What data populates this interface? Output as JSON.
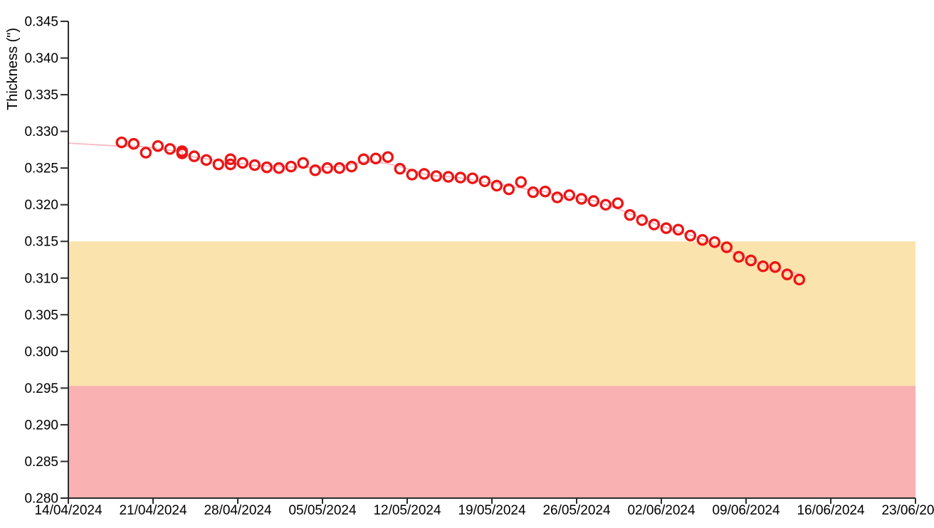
{
  "page": {
    "background": "#ffffff"
  },
  "chart_data": {
    "type": "scatter",
    "title": "",
    "xlabel": "",
    "ylabel": "Thickness (\")",
    "grid": false,
    "legend": "none",
    "ylim": [
      0.28,
      0.345
    ],
    "y_tick_step": 0.005,
    "y_ticks": [
      "0.345",
      "0.340",
      "0.335",
      "0.330",
      "0.325",
      "0.320",
      "0.315",
      "0.310",
      "0.305",
      "0.300",
      "0.295",
      "0.290",
      "0.285",
      "0.280"
    ],
    "x_range": [
      "14/04/2024",
      "23/06/2024"
    ],
    "x_ticks": [
      "14/04/2024",
      "21/04/2024",
      "28/04/2024",
      "05/05/2024",
      "12/05/2024",
      "19/05/2024",
      "26/05/2024",
      "02/06/2024",
      "09/06/2024",
      "16/06/2024",
      "23/06/2024"
    ],
    "colors": {
      "marker": "#ed1515",
      "trend_line": "#f7b9c0",
      "warning_band": "#fbe3ad",
      "alarm_band": "#f9b1b1",
      "axis": "#2b2b2b"
    },
    "bands": [
      {
        "name": "warning-band",
        "from": 0.2953,
        "to": 0.315,
        "color": "#fbe3ad"
      },
      {
        "name": "alarm-band",
        "from": 0.28,
        "to": 0.2953,
        "color": "#f9b1b1"
      }
    ],
    "series": [
      {
        "name": "thickness",
        "marker": "open-circle",
        "points": [
          {
            "date": "18/04/2024",
            "value": 0.3285
          },
          {
            "date": "19/04/2024",
            "value": 0.3283
          },
          {
            "date": "20/04/2024",
            "value": 0.3271
          },
          {
            "date": "21/04/2024",
            "value": 0.328
          },
          {
            "date": "22/04/2024",
            "value": 0.3276
          },
          {
            "date": "23/04/2024",
            "value": 0.3273
          },
          {
            "date": "23/04/2024",
            "value": 0.327
          },
          {
            "date": "24/04/2024",
            "value": 0.3266
          },
          {
            "date": "25/04/2024",
            "value": 0.3261
          },
          {
            "date": "26/04/2024",
            "value": 0.3255
          },
          {
            "date": "27/04/2024",
            "value": 0.3262
          },
          {
            "date": "27/04/2024",
            "value": 0.3255
          },
          {
            "date": "28/04/2024",
            "value": 0.3257
          },
          {
            "date": "29/04/2024",
            "value": 0.3254
          },
          {
            "date": "30/04/2024",
            "value": 0.3251
          },
          {
            "date": "01/05/2024",
            "value": 0.325
          },
          {
            "date": "02/05/2024",
            "value": 0.3252
          },
          {
            "date": "03/05/2024",
            "value": 0.3257
          },
          {
            "date": "04/05/2024",
            "value": 0.3247
          },
          {
            "date": "05/05/2024",
            "value": 0.325
          },
          {
            "date": "06/05/2024",
            "value": 0.325
          },
          {
            "date": "07/05/2024",
            "value": 0.3252
          },
          {
            "date": "08/05/2024",
            "value": 0.3262
          },
          {
            "date": "09/05/2024",
            "value": 0.3263
          },
          {
            "date": "10/05/2024",
            "value": 0.3265
          },
          {
            "date": "11/05/2024",
            "value": 0.3249
          },
          {
            "date": "12/05/2024",
            "value": 0.3241
          },
          {
            "date": "13/05/2024",
            "value": 0.3242
          },
          {
            "date": "14/05/2024",
            "value": 0.3239
          },
          {
            "date": "15/05/2024",
            "value": 0.3238
          },
          {
            "date": "16/05/2024",
            "value": 0.3237
          },
          {
            "date": "17/05/2024",
            "value": 0.3236
          },
          {
            "date": "18/05/2024",
            "value": 0.3232
          },
          {
            "date": "19/05/2024",
            "value": 0.3226
          },
          {
            "date": "20/05/2024",
            "value": 0.3221
          },
          {
            "date": "21/05/2024",
            "value": 0.3231
          },
          {
            "date": "22/05/2024",
            "value": 0.3217
          },
          {
            "date": "23/05/2024",
            "value": 0.3218
          },
          {
            "date": "24/05/2024",
            "value": 0.321
          },
          {
            "date": "25/05/2024",
            "value": 0.3213
          },
          {
            "date": "26/05/2024",
            "value": 0.3208
          },
          {
            "date": "27/05/2024",
            "value": 0.3205
          },
          {
            "date": "28/05/2024",
            "value": 0.32
          },
          {
            "date": "29/05/2024",
            "value": 0.3202
          },
          {
            "date": "30/05/2024",
            "value": 0.3186
          },
          {
            "date": "31/05/2024",
            "value": 0.3179
          },
          {
            "date": "01/06/2024",
            "value": 0.3173
          },
          {
            "date": "02/06/2024",
            "value": 0.3168
          },
          {
            "date": "03/06/2024",
            "value": 0.3166
          },
          {
            "date": "04/06/2024",
            "value": 0.3158
          },
          {
            "date": "05/06/2024",
            "value": 0.3152
          },
          {
            "date": "06/06/2024",
            "value": 0.3149
          },
          {
            "date": "07/06/2024",
            "value": 0.3142
          },
          {
            "date": "08/06/2024",
            "value": 0.3129
          },
          {
            "date": "09/06/2024",
            "value": 0.3124
          },
          {
            "date": "10/06/2024",
            "value": 0.3116
          },
          {
            "date": "11/06/2024",
            "value": 0.3115
          },
          {
            "date": "12/06/2024",
            "value": 0.3105
          },
          {
            "date": "13/06/2024",
            "value": 0.3098
          }
        ]
      }
    ]
  }
}
